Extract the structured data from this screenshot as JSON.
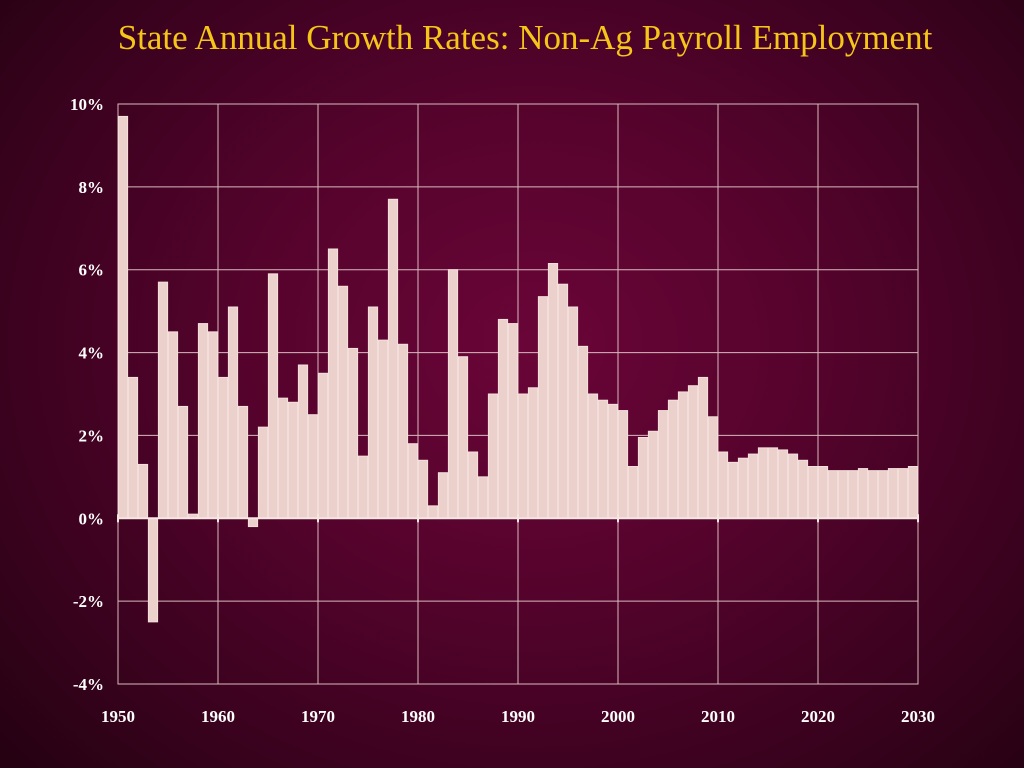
{
  "slide": {
    "title": "State Annual Growth Rates: Non-Ag Payroll Employment"
  },
  "colors": {
    "background": "#5a0430",
    "title": "#f5c518",
    "bar_fill": "#ecd0cc",
    "bar_edge": "#f3e0dc",
    "grid": "#d9b9bd",
    "axis_text": "#ffffff"
  },
  "chart_data": {
    "type": "bar",
    "title": "State Annual Growth Rates: Non-Ag Payroll Employment",
    "xlabel": "",
    "ylabel": "",
    "x": [
      1951,
      1952,
      1953,
      1954,
      1955,
      1956,
      1957,
      1958,
      1959,
      1960,
      1961,
      1962,
      1963,
      1964,
      1965,
      1966,
      1967,
      1968,
      1969,
      1970,
      1971,
      1972,
      1973,
      1974,
      1975,
      1976,
      1977,
      1978,
      1979,
      1980,
      1981,
      1982,
      1983,
      1984,
      1985,
      1986,
      1987,
      1988,
      1989,
      1990,
      1991,
      1992,
      1993,
      1994,
      1995,
      1996,
      1997,
      1998,
      1999,
      2000,
      2001,
      2002,
      2003,
      2004,
      2005,
      2006,
      2007,
      2008,
      2009,
      2010,
      2011,
      2012,
      2013,
      2014,
      2015,
      2016,
      2017,
      2018,
      2019,
      2020,
      2021,
      2022,
      2023,
      2024,
      2025,
      2026,
      2027,
      2028,
      2029,
      2030
    ],
    "values": [
      9.7,
      3.4,
      1.3,
      -2.5,
      5.7,
      4.5,
      2.7,
      0.1,
      4.7,
      4.5,
      3.4,
      5.1,
      2.7,
      -0.2,
      2.2,
      5.9,
      2.9,
      2.8,
      3.7,
      2.5,
      3.5,
      6.5,
      5.6,
      4.1,
      1.5,
      5.1,
      4.3,
      7.7,
      4.2,
      1.8,
      1.4,
      0.3,
      1.1,
      6.0,
      3.9,
      1.6,
      1.0,
      3.0,
      4.8,
      4.7,
      3.0,
      3.15,
      5.35,
      6.15,
      5.65,
      5.1,
      4.15,
      3.0,
      2.85,
      2.75,
      2.6,
      1.25,
      1.95,
      2.1,
      2.6,
      2.85,
      3.05,
      3.2,
      3.4,
      2.45,
      1.6,
      1.35,
      1.45,
      1.55,
      1.7,
      1.7,
      1.65,
      1.55,
      1.4,
      1.25,
      1.25,
      1.15,
      1.15,
      1.15,
      1.2,
      1.15,
      1.15,
      1.2,
      1.2,
      1.25
    ],
    "ylim": [
      -4,
      10
    ],
    "xlim": [
      1950,
      2030
    ],
    "yticks": [
      10,
      8,
      6,
      4,
      2,
      0,
      -2,
      -4
    ],
    "ytick_labels": [
      "10%",
      "8%",
      "6%",
      "4%",
      "2%",
      "0%",
      "-2%",
      "-4%"
    ],
    "xticks": [
      1950,
      1960,
      1970,
      1980,
      1990,
      2000,
      2010,
      2020,
      2030
    ],
    "xtick_labels": [
      "1950",
      "1960",
      "1970",
      "1980",
      "1990",
      "2000",
      "2010",
      "2020",
      "2030"
    ],
    "grid": true,
    "legend": "none"
  }
}
